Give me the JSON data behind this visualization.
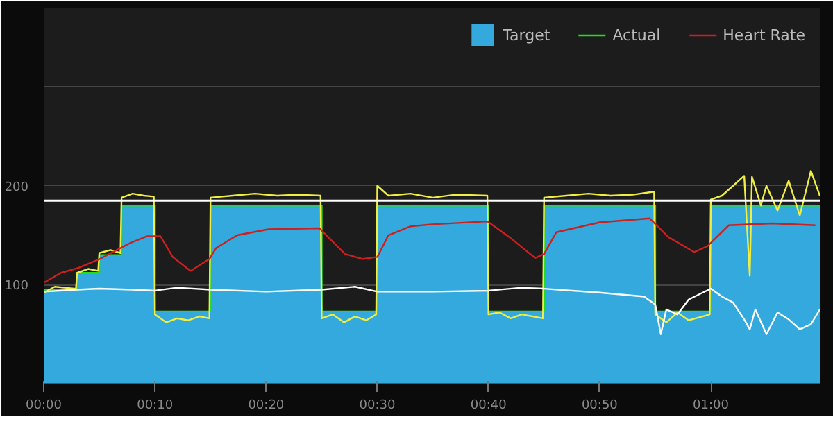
{
  "chart_data": {
    "type": "line",
    "xlim": [
      0,
      69.8
    ],
    "ylim": [
      0,
      380
    ],
    "xticks": [
      {
        "value": 0,
        "label": "00:00"
      },
      {
        "value": 10,
        "label": "00:10"
      },
      {
        "value": 20,
        "label": "00:20"
      },
      {
        "value": 30,
        "label": "00:30"
      },
      {
        "value": 40,
        "label": "00:40"
      },
      {
        "value": 50,
        "label": "00:50"
      },
      {
        "value": 60,
        "label": "01:00"
      }
    ],
    "yticks": [
      100,
      200,
      {
        "value": 300,
        "label": null
      }
    ],
    "grid": "y",
    "legend": "top right",
    "ref_lines": [
      {
        "axis": "y",
        "value": 185,
        "color": "#ffffff"
      }
    ],
    "series": [
      {
        "name": "Target",
        "type": "area",
        "color": "#34a9dd",
        "x": [
          0,
          3,
          3,
          5,
          5,
          7,
          7,
          10,
          10,
          15,
          15,
          25,
          25,
          30,
          30,
          40,
          40,
          45,
          45,
          55,
          55,
          60,
          60,
          69.8
        ],
        "values": [
          95,
          95,
          112,
          112,
          130,
          130,
          180,
          180,
          73,
          73,
          180,
          180,
          73,
          73,
          180,
          180,
          73,
          73,
          180,
          180,
          73,
          73,
          180,
          180
        ]
      },
      {
        "name": "Actual",
        "color": "#22dd22",
        "x": [
          0,
          3,
          3,
          5,
          5,
          7,
          7,
          10,
          10,
          15,
          15,
          25,
          25,
          30,
          30,
          40,
          40,
          45,
          45,
          55,
          55,
          60,
          60,
          69.8
        ],
        "values": [
          95,
          95,
          112,
          112,
          130,
          130,
          180,
          180,
          73,
          73,
          180,
          180,
          73,
          73,
          180,
          180,
          73,
          73,
          180,
          180,
          73,
          73,
          180,
          180
        ]
      },
      {
        "color": "#eeee44",
        "x": [
          0,
          1,
          2.9,
          3,
          4,
          4.9,
          5,
          6,
          6.9,
          7,
          8,
          9,
          9.9,
          10,
          11,
          12,
          13,
          14,
          14.9,
          15,
          17,
          19,
          21,
          23,
          24.9,
          25,
          26,
          27,
          28,
          29,
          29.9,
          30,
          31,
          33,
          35,
          37,
          39.9,
          40,
          41,
          42,
          43,
          44.9,
          45,
          47,
          49,
          51,
          53,
          54.9,
          55,
          56,
          57,
          58,
          59.9,
          60,
          61,
          62,
          63,
          63.5,
          63.7,
          64.5,
          65,
          66,
          67,
          68,
          69,
          69.8
        ],
        "values": [
          92,
          98,
          96,
          112,
          116,
          114,
          132,
          135,
          132,
          188,
          192,
          190,
          189,
          70,
          62,
          66,
          64,
          68,
          66,
          188,
          190,
          192,
          190,
          191,
          190,
          66,
          70,
          62,
          68,
          64,
          70,
          200,
          190,
          192,
          188,
          191,
          190,
          70,
          72,
          66,
          70,
          66,
          188,
          190,
          192,
          190,
          191,
          194,
          70,
          62,
          72,
          64,
          70,
          186,
          190,
          200,
          210,
          109,
          209,
          180,
          200,
          175,
          205,
          170,
          215,
          190
        ]
      },
      {
        "color": "#ffffff",
        "x": [
          0,
          3,
          5,
          8,
          10,
          12,
          15,
          20,
          25,
          28,
          30,
          35,
          40,
          43,
          45,
          50,
          54,
          55,
          55.5,
          56,
          57,
          58,
          60,
          61,
          62,
          63,
          63.5,
          64,
          65,
          66,
          67,
          68,
          69,
          69.8
        ],
        "values": [
          93,
          95,
          96,
          95,
          94,
          97,
          95,
          93,
          95,
          98,
          93,
          93,
          94,
          97,
          96,
          92,
          88,
          80,
          50,
          75,
          70,
          85,
          96,
          88,
          82,
          65,
          55,
          75,
          50,
          72,
          65,
          55,
          60,
          75
        ]
      },
      {
        "name": "Heart Rate",
        "color": "#cc1f1f",
        "x": [
          0,
          1.55,
          3.1,
          5.04,
          6.9,
          7.75,
          9.3,
          10.5,
          11.6,
          13.2,
          14.9,
          15.5,
          17.4,
          20.2,
          24.8,
          27.1,
          28.7,
          30,
          31,
          33,
          34.9,
          39.9,
          41.9,
          44.2,
          45,
          46.1,
          50,
          54.5,
          56.2,
          58.5,
          59.7,
          61.6,
          65.5,
          69.4
        ],
        "values": [
          102,
          112,
          117,
          126,
          137,
          142,
          149,
          149,
          128,
          114,
          126,
          137,
          150,
          156,
          157,
          131,
          126,
          128,
          150,
          159,
          161,
          164,
          148,
          127,
          131,
          153,
          163,
          167,
          148,
          133,
          139,
          160,
          162,
          160
        ]
      }
    ]
  }
}
